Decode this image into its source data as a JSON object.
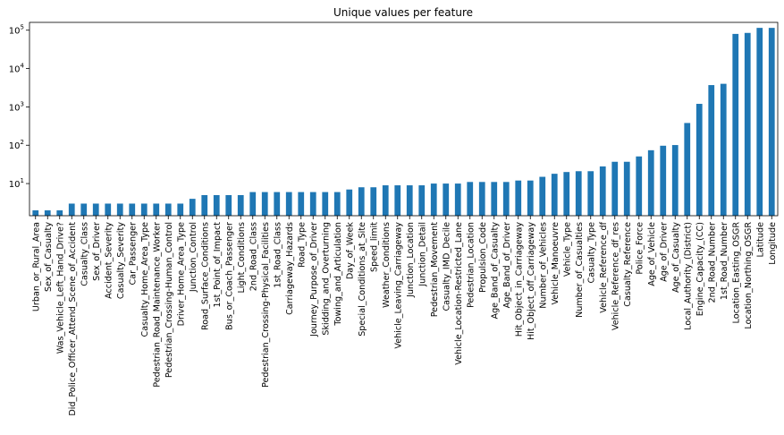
{
  "chart_data": {
    "type": "bar",
    "title": "Unique values per feature",
    "xlabel": "",
    "ylabel": "",
    "yscale": "log",
    "ylim": [
      1.45,
      160000
    ],
    "yticks": [
      10,
      100,
      1000,
      10000,
      100000
    ],
    "ytick_labels": [
      {
        "base": "10",
        "exp": "1"
      },
      {
        "base": "10",
        "exp": "2"
      },
      {
        "base": "10",
        "exp": "3"
      },
      {
        "base": "10",
        "exp": "4"
      },
      {
        "base": "10",
        "exp": "5"
      }
    ],
    "grid": false,
    "legend": "none",
    "bar_color": "#1f77b4",
    "categories": [
      "Urban_or_Rural_Area",
      "Sex_of_Casualty",
      "Was_Vehicle_Left_Hand_Drive?",
      "Did_Police_Officer_Attend_Scene_of_Accident",
      "Casualty_Class",
      "Sex_of_Driver",
      "Accident_Severity",
      "Casualty_Severity",
      "Car_Passenger",
      "Casualty_Home_Area_Type",
      "Pedestrian_Road_Maintenance_Worker",
      "Pedestrian_Crossing-Human_Control",
      "Driver_Home_Area_Type",
      "Junction_Control",
      "Road_Surface_Conditions",
      "1st_Point_of_Impact",
      "Bus_or_Coach_Passenger",
      "Light_Conditions",
      "2nd_Road_Class",
      "Pedestrian_Crossing-Physical_Facilities",
      "1st_Road_Class",
      "Carriageway_Hazards",
      "Road_Type",
      "Journey_Purpose_of_Driver",
      "Skidding_and_Overturning",
      "Towing_and_Articulation",
      "Day_of_Week",
      "Special_Conditions_at_Site",
      "Speed_limit",
      "Weather_Conditions",
      "Vehicle_Leaving_Carriageway",
      "Junction_Location",
      "Junction_Detail",
      "Pedestrian_Movement",
      "Casualty_IMD_Decile",
      "Vehicle_Location-Restricted_Lane",
      "Pedestrian_Location",
      "Propulsion_Code",
      "Age_Band_of_Casualty",
      "Age_Band_of_Driver",
      "Hit_Object_in_Carriageway",
      "Hit_Object_off_Carriageway",
      "Number_of_Vehicles",
      "Vehicle_Manoeuvre",
      "Vehicle_Type",
      "Number_of_Casualties",
      "Casualty_Type",
      "Vehicle_Reference_df",
      "Vehicle_Reference_df_res",
      "Casualty_Reference",
      "Police_Force",
      "Age_of_Vehicle",
      "Age_of_Driver",
      "Age_of_Casualty",
      "Local_Authority_(District)",
      "Engine_Capacity_(CC)",
      "2nd_Road_Number",
      "1st_Road_Number",
      "Location_Easting_OSGR",
      "Location_Northing_OSGR",
      "Latitude",
      "Longitude"
    ],
    "values": [
      2,
      2,
      2,
      3,
      3,
      3,
      3,
      3,
      3,
      3,
      3,
      3,
      3,
      4,
      5,
      5,
      5,
      5,
      6,
      6,
      6,
      6,
      6,
      6,
      6,
      6,
      7,
      8,
      8,
      9,
      9,
      9,
      9,
      10,
      10,
      10,
      11,
      11,
      11,
      11,
      12,
      12,
      15,
      18,
      20,
      21,
      21,
      28,
      37,
      37,
      51,
      74,
      97,
      101,
      380,
      1200,
      3700,
      4000,
      80000,
      85000,
      115000,
      115000
    ]
  }
}
